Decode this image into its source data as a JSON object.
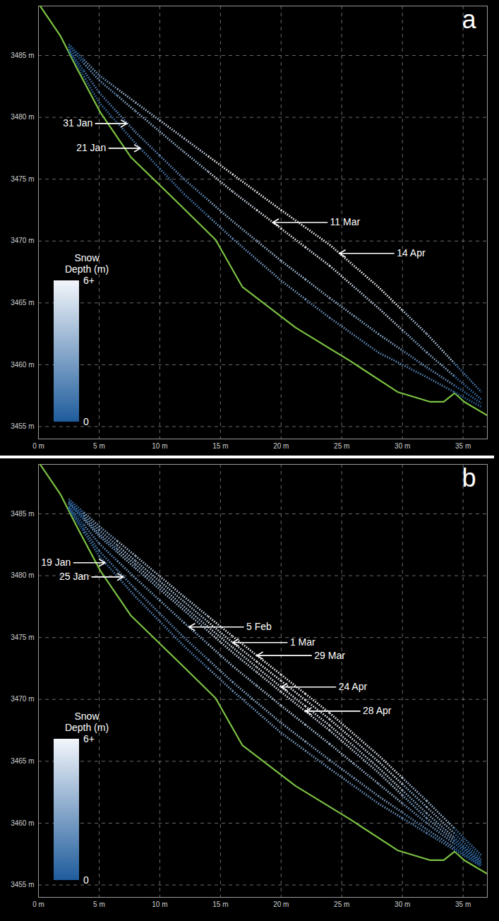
{
  "chart_data": [
    {
      "type": "line",
      "panel_label": "a",
      "xlim": [
        0,
        37
      ],
      "xticks": [
        {
          "value": 0,
          "label": "0 m"
        },
        {
          "value": 5,
          "label": "5 m"
        },
        {
          "value": 10,
          "label": "10 m"
        },
        {
          "value": 15,
          "label": "15 m"
        },
        {
          "value": 20,
          "label": "20 m"
        },
        {
          "value": 25,
          "label": "25 m"
        },
        {
          "value": 30,
          "label": "30 m"
        },
        {
          "value": 35,
          "label": "35 m"
        }
      ],
      "ylim": [
        3454,
        3489
      ],
      "yticks": [
        {
          "value": 3455,
          "label": "3455 m"
        },
        {
          "value": 3460,
          "label": "3460 m"
        },
        {
          "value": 3465,
          "label": "3465 m"
        },
        {
          "value": 3470,
          "label": "3470 m"
        },
        {
          "value": 3475,
          "label": "3475 m"
        },
        {
          "value": 3480,
          "label": "3480 m"
        },
        {
          "value": 3485,
          "label": "3485 m"
        }
      ],
      "grid": true,
      "legend": "bottom-left",
      "line_style": "dotted",
      "ground": {
        "color": "#7cc242",
        "x": [
          0,
          1.8,
          3.2,
          5.1,
          7.6,
          11.8,
          14.6,
          16.8,
          21.2,
          25.7,
          29.6,
          32.3,
          33.4,
          34.3,
          35.1,
          37
        ],
        "values": [
          3489.2,
          3486.6,
          3483.9,
          3480.4,
          3476.8,
          3472.8,
          3470.1,
          3466.3,
          3463.0,
          3460.3,
          3457.8,
          3457.0,
          3457.0,
          3457.7,
          3457.0,
          3455.9
        ]
      },
      "colorbar": {
        "title": "Snow Depth (m)",
        "range": [
          0,
          6
        ],
        "colors": [
          "#1f5c9c",
          "#f3f6fb"
        ],
        "ticks": [
          {
            "value": 0,
            "label": "0"
          },
          {
            "value": 6,
            "label": "6+"
          }
        ]
      },
      "series": [
        {
          "name": "21 Jan",
          "x": [
            2.5,
            5,
            8,
            12,
            16,
            20,
            24,
            28,
            32,
            36.5
          ],
          "values": [
            3485.4,
            3481.2,
            3477.9,
            3473.8,
            3470.2,
            3466.8,
            3463.8,
            3461.0,
            3459.0,
            3456.6
          ],
          "depth": [
            0.1,
            0.6,
            1.1,
            1.0,
            2.1,
            2.6,
            2.1,
            1.8,
            1.4,
            0.2
          ],
          "annotation": {
            "x": 8.4,
            "y": 3477.5,
            "side": "left"
          }
        },
        {
          "name": "31 Jan",
          "x": [
            2.5,
            5,
            8,
            12,
            16,
            20,
            24,
            28,
            32,
            36.5
          ],
          "values": [
            3485.5,
            3482.0,
            3478.8,
            3475.0,
            3471.6,
            3468.4,
            3465.4,
            3462.5,
            3459.8,
            3456.9
          ],
          "depth": [
            0.2,
            1.3,
            1.8,
            1.9,
            3.2,
            3.8,
            3.4,
            3.0,
            2.1,
            0.5
          ],
          "annotation": {
            "x": 7.3,
            "y": 3479.5,
            "side": "left"
          }
        },
        {
          "name": "11 Mar",
          "x": [
            2.5,
            5,
            8,
            12,
            16,
            20,
            24,
            28,
            32,
            36.5
          ],
          "values": [
            3485.7,
            3483.0,
            3480.5,
            3477.2,
            3474.0,
            3471.0,
            3468.0,
            3464.6,
            3461.0,
            3457.2
          ],
          "depth": [
            0.4,
            2.1,
            3.2,
            3.7,
            5.1,
            5.9,
            5.4,
            4.6,
            3.0,
            0.7
          ],
          "annotation": {
            "x": 19.3,
            "y": 3471.5,
            "side": "right"
          }
        },
        {
          "name": "14 Apr",
          "x": [
            2.5,
            5,
            8,
            12,
            16,
            20,
            24,
            28,
            32,
            36.5
          ],
          "values": [
            3485.9,
            3483.4,
            3481.2,
            3478.3,
            3475.4,
            3472.5,
            3469.7,
            3466.3,
            3462.5,
            3457.8
          ],
          "depth": [
            0.5,
            2.4,
            3.8,
            4.6,
            6.2,
            7.1,
            6.8,
            6.0,
            4.2,
            1.2
          ],
          "annotation": {
            "x": 24.8,
            "y": 3469.0,
            "side": "right"
          }
        }
      ]
    },
    {
      "type": "line",
      "panel_label": "b",
      "xlim": [
        0,
        37
      ],
      "xticks": [
        {
          "value": 0,
          "label": "0 m"
        },
        {
          "value": 5,
          "label": "5 m"
        },
        {
          "value": 10,
          "label": "10 m"
        },
        {
          "value": 15,
          "label": "15 m"
        },
        {
          "value": 20,
          "label": "20 m"
        },
        {
          "value": 25,
          "label": "25 m"
        },
        {
          "value": 30,
          "label": "30 m"
        },
        {
          "value": 35,
          "label": "35 m"
        }
      ],
      "ylim": [
        3454,
        3489
      ],
      "yticks": [
        {
          "value": 3455,
          "label": "3455 m"
        },
        {
          "value": 3460,
          "label": "3460 m"
        },
        {
          "value": 3465,
          "label": "3465 m"
        },
        {
          "value": 3470,
          "label": "3470 m"
        },
        {
          "value": 3475,
          "label": "3475 m"
        },
        {
          "value": 3480,
          "label": "3480 m"
        },
        {
          "value": 3485,
          "label": "3485 m"
        }
      ],
      "grid": true,
      "legend": "bottom-left",
      "line_style": "dotted",
      "ground": {
        "color": "#7cc242",
        "x": [
          0,
          1.8,
          3.2,
          5.1,
          7.6,
          11.8,
          14.6,
          16.8,
          21.2,
          25.7,
          29.6,
          32.3,
          33.4,
          34.3,
          35.1,
          37
        ],
        "values": [
          3489.2,
          3486.6,
          3483.9,
          3480.4,
          3476.8,
          3472.8,
          3470.1,
          3466.3,
          3463.0,
          3460.3,
          3457.8,
          3457.0,
          3457.0,
          3457.7,
          3457.0,
          3455.9
        ]
      },
      "colorbar": {
        "title": "Snow Depth (m)",
        "range": [
          0,
          6
        ],
        "colors": [
          "#1f5c9c",
          "#f3f6fb"
        ],
        "ticks": [
          {
            "value": 0,
            "label": "0"
          },
          {
            "value": 6,
            "label": "6+"
          }
        ]
      },
      "series": [
        {
          "name": "19 Jan",
          "x": [
            2.5,
            5,
            8,
            12,
            16,
            20,
            24,
            28,
            32,
            36.5
          ],
          "values": [
            3485.4,
            3481.6,
            3478.3,
            3474.3,
            3470.7,
            3467.3,
            3464.4,
            3461.6,
            3459.2,
            3456.5
          ],
          "depth": [
            0.1,
            1.0,
            1.4,
            1.4,
            2.4,
            2.6,
            2.5,
            2.2,
            1.6,
            0.2
          ],
          "annotation": {
            "x": 5.5,
            "y": 3481.05,
            "side": "left"
          }
        },
        {
          "name": "25 Jan",
          "x": [
            2.5,
            5,
            8,
            12,
            16,
            20,
            24,
            28,
            32,
            36.5
          ],
          "values": [
            3485.5,
            3482.0,
            3478.9,
            3475.0,
            3471.4,
            3468.1,
            3465.1,
            3462.2,
            3459.5,
            3456.6
          ],
          "depth": [
            0.2,
            1.3,
            1.9,
            1.9,
            3.0,
            3.3,
            3.0,
            2.7,
            1.8,
            0.3
          ],
          "annotation": {
            "x": 7,
            "y": 3479.9,
            "side": "left"
          }
        },
        {
          "name": "5 Feb",
          "x": [
            2.5,
            5,
            8,
            12,
            16,
            20,
            24,
            28,
            32,
            36.5
          ],
          "values": [
            3485.6,
            3482.6,
            3479.8,
            3476.2,
            3472.7,
            3469.5,
            3466.4,
            3463.2,
            3460.0,
            3456.7
          ],
          "depth": [
            0.3,
            1.8,
            2.6,
            2.9,
            4.0,
            4.4,
            4.1,
            3.5,
            2.2,
            0.4
          ],
          "annotation": {
            "x": 12.4,
            "y": 3475.85,
            "side": "right"
          }
        },
        {
          "name": "1 Mar",
          "x": [
            2.5,
            5,
            8,
            12,
            16,
            20,
            24,
            28,
            32,
            36.5
          ],
          "values": [
            3486.0,
            3483.7,
            3481.2,
            3477.9,
            3474.6,
            3471.5,
            3468.4,
            3465.0,
            3461.3,
            3457.1
          ],
          "depth": [
            0.6,
            2.6,
            3.8,
            4.2,
            5.5,
            6.0,
            5.7,
            5.0,
            3.3,
            0.7
          ],
          "annotation": {
            "x": 16,
            "y": 3474.6,
            "side": "right"
          }
        },
        {
          "name": "29 Mar",
          "x": [
            2.5,
            5,
            8,
            12,
            16,
            20,
            24,
            28,
            32,
            36.5
          ],
          "values": [
            3486.2,
            3484.0,
            3481.6,
            3478.3,
            3475.1,
            3472.0,
            3468.9,
            3465.5,
            3461.8,
            3457.4
          ],
          "depth": [
            0.8,
            2.9,
            4.1,
            4.6,
            5.9,
            6.4,
            6.1,
            5.4,
            3.7,
            1.0
          ],
          "annotation": {
            "x": 18,
            "y": 3473.55,
            "side": "right"
          }
        },
        {
          "name": "24 Apr",
          "x": [
            2.5,
            5,
            8,
            12,
            16,
            20,
            24,
            28,
            32,
            36.5
          ],
          "values": [
            3485.9,
            3483.4,
            3480.9,
            3477.5,
            3474.2,
            3471.0,
            3467.9,
            3464.5,
            3460.8,
            3456.9
          ],
          "depth": [
            0.5,
            2.4,
            3.5,
            3.9,
            5.2,
            5.6,
            5.3,
            4.6,
            2.9,
            0.6
          ],
          "annotation": {
            "x": 20,
            "y": 3471.0,
            "side": "right"
          }
        },
        {
          "name": "28 Apr",
          "x": [
            2.5,
            5,
            8,
            12,
            16,
            20,
            24,
            28,
            32,
            36.5
          ],
          "values": [
            3485.8,
            3483.2,
            3480.6,
            3477.2,
            3473.8,
            3470.6,
            3467.5,
            3464.1,
            3460.4,
            3456.8
          ],
          "depth": [
            0.4,
            2.2,
            3.3,
            3.7,
            4.9,
            5.3,
            5.0,
            4.2,
            2.6,
            0.5
          ],
          "annotation": {
            "x": 22,
            "y": 3469.05,
            "side": "right"
          }
        }
      ]
    }
  ]
}
